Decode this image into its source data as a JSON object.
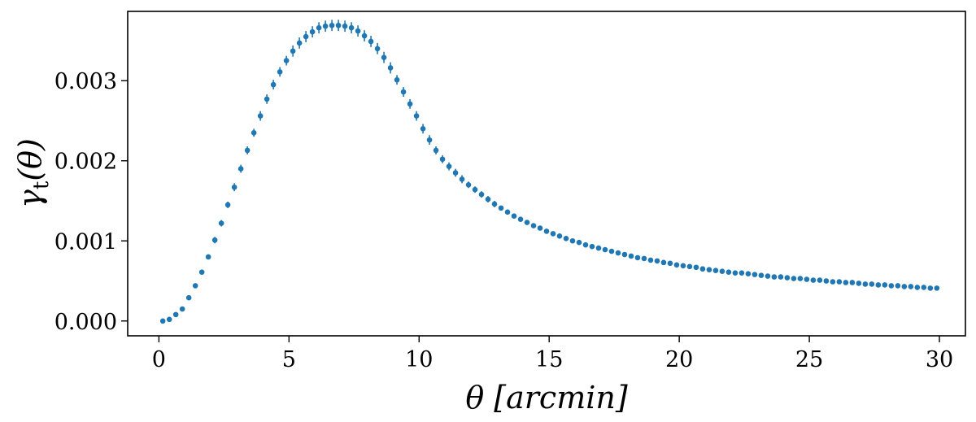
{
  "chart_data": {
    "type": "scatter",
    "xlabel": "θ [arcmin]",
    "ylabel": {
      "main": "γ",
      "sub": "t",
      "suffix": "(θ)"
    },
    "xlim": [
      -1.2,
      31.0
    ],
    "ylim": [
      -0.000185,
      0.003865
    ],
    "xticks": [
      0,
      5,
      10,
      15,
      20,
      25,
      30
    ],
    "xtick_labels": [
      "0",
      "5",
      "10",
      "15",
      "20",
      "25",
      "30"
    ],
    "yticks": [
      0.0,
      0.001,
      0.002,
      0.003
    ],
    "ytick_labels": [
      "0.000",
      "0.001",
      "0.002",
      "0.003"
    ],
    "grid": false,
    "marker_color": "#1f77b4",
    "x_start": 0.15,
    "x_step": 0.25,
    "y": [
      0.0,
      2e-05,
      8e-05,
      0.00015,
      0.00029,
      0.00044,
      0.00061,
      0.0008,
      0.00101,
      0.00122,
      0.00145,
      0.00167,
      0.0019,
      0.00213,
      0.00235,
      0.00256,
      0.00277,
      0.00295,
      0.00311,
      0.00325,
      0.00337,
      0.00347,
      0.00355,
      0.00361,
      0.00366,
      0.00368,
      0.00369,
      0.00369,
      0.00368,
      0.00366,
      0.00362,
      0.00356,
      0.00349,
      0.0034,
      0.00329,
      0.00316,
      0.00301,
      0.00286,
      0.00271,
      0.00256,
      0.0024,
      0.00226,
      0.00213,
      0.00202,
      0.00193,
      0.00185,
      0.00177,
      0.0017,
      0.00164,
      0.00158,
      0.00152,
      0.00146,
      0.00141,
      0.00136,
      0.00131,
      0.00127,
      0.00123,
      0.00119,
      0.00116,
      0.00112,
      0.00109,
      0.00106,
      0.00103,
      0.001,
      0.00098,
      0.00095,
      0.00093,
      0.00091,
      0.00089,
      0.00087,
      0.00085,
      0.00083,
      0.00081,
      0.00079,
      0.00078,
      0.00076,
      0.00075,
      0.00073,
      0.00072,
      0.0007,
      0.00069,
      0.00068,
      0.00067,
      0.00065,
      0.00064,
      0.00063,
      0.00062,
      0.00061,
      0.0006,
      0.0006,
      0.00059,
      0.00058,
      0.00057,
      0.00056,
      0.00055,
      0.00055,
      0.00054,
      0.00053,
      0.00053,
      0.00052,
      0.00051,
      0.00051,
      0.0005,
      0.00049,
      0.00049,
      0.00048,
      0.00048,
      0.00047,
      0.00046,
      0.00046,
      0.00045,
      0.00045,
      0.00044,
      0.00044,
      0.00043,
      0.00043,
      0.00042,
      0.00042,
      0.00041,
      0.00041
    ],
    "yerr": [
      1e-05,
      1e-05,
      1e-05,
      2e-05,
      2e-05,
      3e-05,
      3e-05,
      3e-05,
      4e-05,
      4e-05,
      4e-05,
      5e-05,
      5e-05,
      5e-05,
      5e-05,
      6e-05,
      6e-05,
      6e-05,
      6e-05,
      6e-05,
      7e-05,
      7e-05,
      7e-05,
      7e-05,
      7e-05,
      7e-05,
      7e-05,
      7e-05,
      7e-05,
      7e-05,
      7e-05,
      7e-05,
      7e-05,
      7e-05,
      7e-05,
      7e-05,
      6e-05,
      6e-05,
      6e-05,
      6e-05,
      6e-05,
      6e-05,
      5e-05,
      5e-05,
      5e-05,
      5e-05,
      5e-05,
      4e-05,
      4e-05,
      4e-05,
      4e-05,
      4e-05,
      3e-05,
      3e-05,
      3e-05,
      3e-05,
      3e-05,
      3e-05,
      3e-05,
      2e-05,
      2e-05,
      2e-05,
      2e-05,
      2e-05,
      2e-05,
      2e-05,
      2e-05,
      2e-05,
      2e-05,
      2e-05,
      1e-05,
      1e-05,
      1e-05,
      1e-05,
      1e-05,
      1e-05,
      1e-05,
      1e-05,
      1e-05,
      1e-05,
      1e-05,
      1e-05,
      1e-05,
      1e-05,
      1e-05,
      1e-05,
      1e-05,
      1e-05,
      1e-05,
      1e-05,
      1e-05,
      1e-05,
      1e-05,
      1e-05,
      1e-05,
      1e-05,
      1e-05,
      1e-05,
      1e-05,
      1e-05,
      1e-05,
      1e-05,
      1e-05,
      1e-05,
      1e-05,
      1e-05,
      1e-05,
      1e-05,
      1e-05,
      1e-05,
      1e-05,
      1e-05,
      1e-05,
      1e-05,
      1e-05,
      1e-05,
      1e-05,
      1e-05,
      1e-05,
      1e-05
    ]
  }
}
